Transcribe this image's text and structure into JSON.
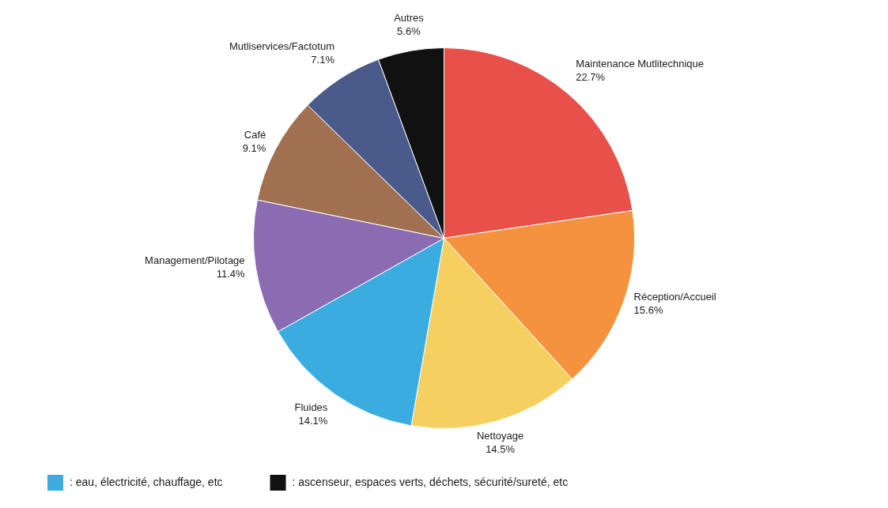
{
  "chart_data": {
    "type": "pie",
    "categories": [
      "Maintenance Mutlitechnique",
      "Réception/Accueil",
      "Nettoyage",
      "Fluides",
      "Management/Pilotage",
      "Café",
      "Mutliservices/Factotum",
      "Autres"
    ],
    "values": [
      22.7,
      15.6,
      14.5,
      14.1,
      11.4,
      9.1,
      7.1,
      5.6
    ],
    "value_labels": [
      "22.7%",
      "15.6%",
      "14.5%",
      "14.1%",
      "11.4%",
      "9.1%",
      "7.1%",
      "5.6%"
    ],
    "colors": [
      "#E8504A",
      "#F5923E",
      "#F5D060",
      "#3AACE0",
      "#8B6BB1",
      "#A07050",
      "#4A5A8A",
      "#111111"
    ],
    "data_labels": true,
    "annotations": [
      {
        "text": ": eau, électricité, chauffage, etc",
        "color": "#3AACE0"
      },
      {
        "text": ": ascenseur, espaces verts, déchets, sécurité/sureté, etc",
        "color": "#111111"
      }
    ]
  }
}
